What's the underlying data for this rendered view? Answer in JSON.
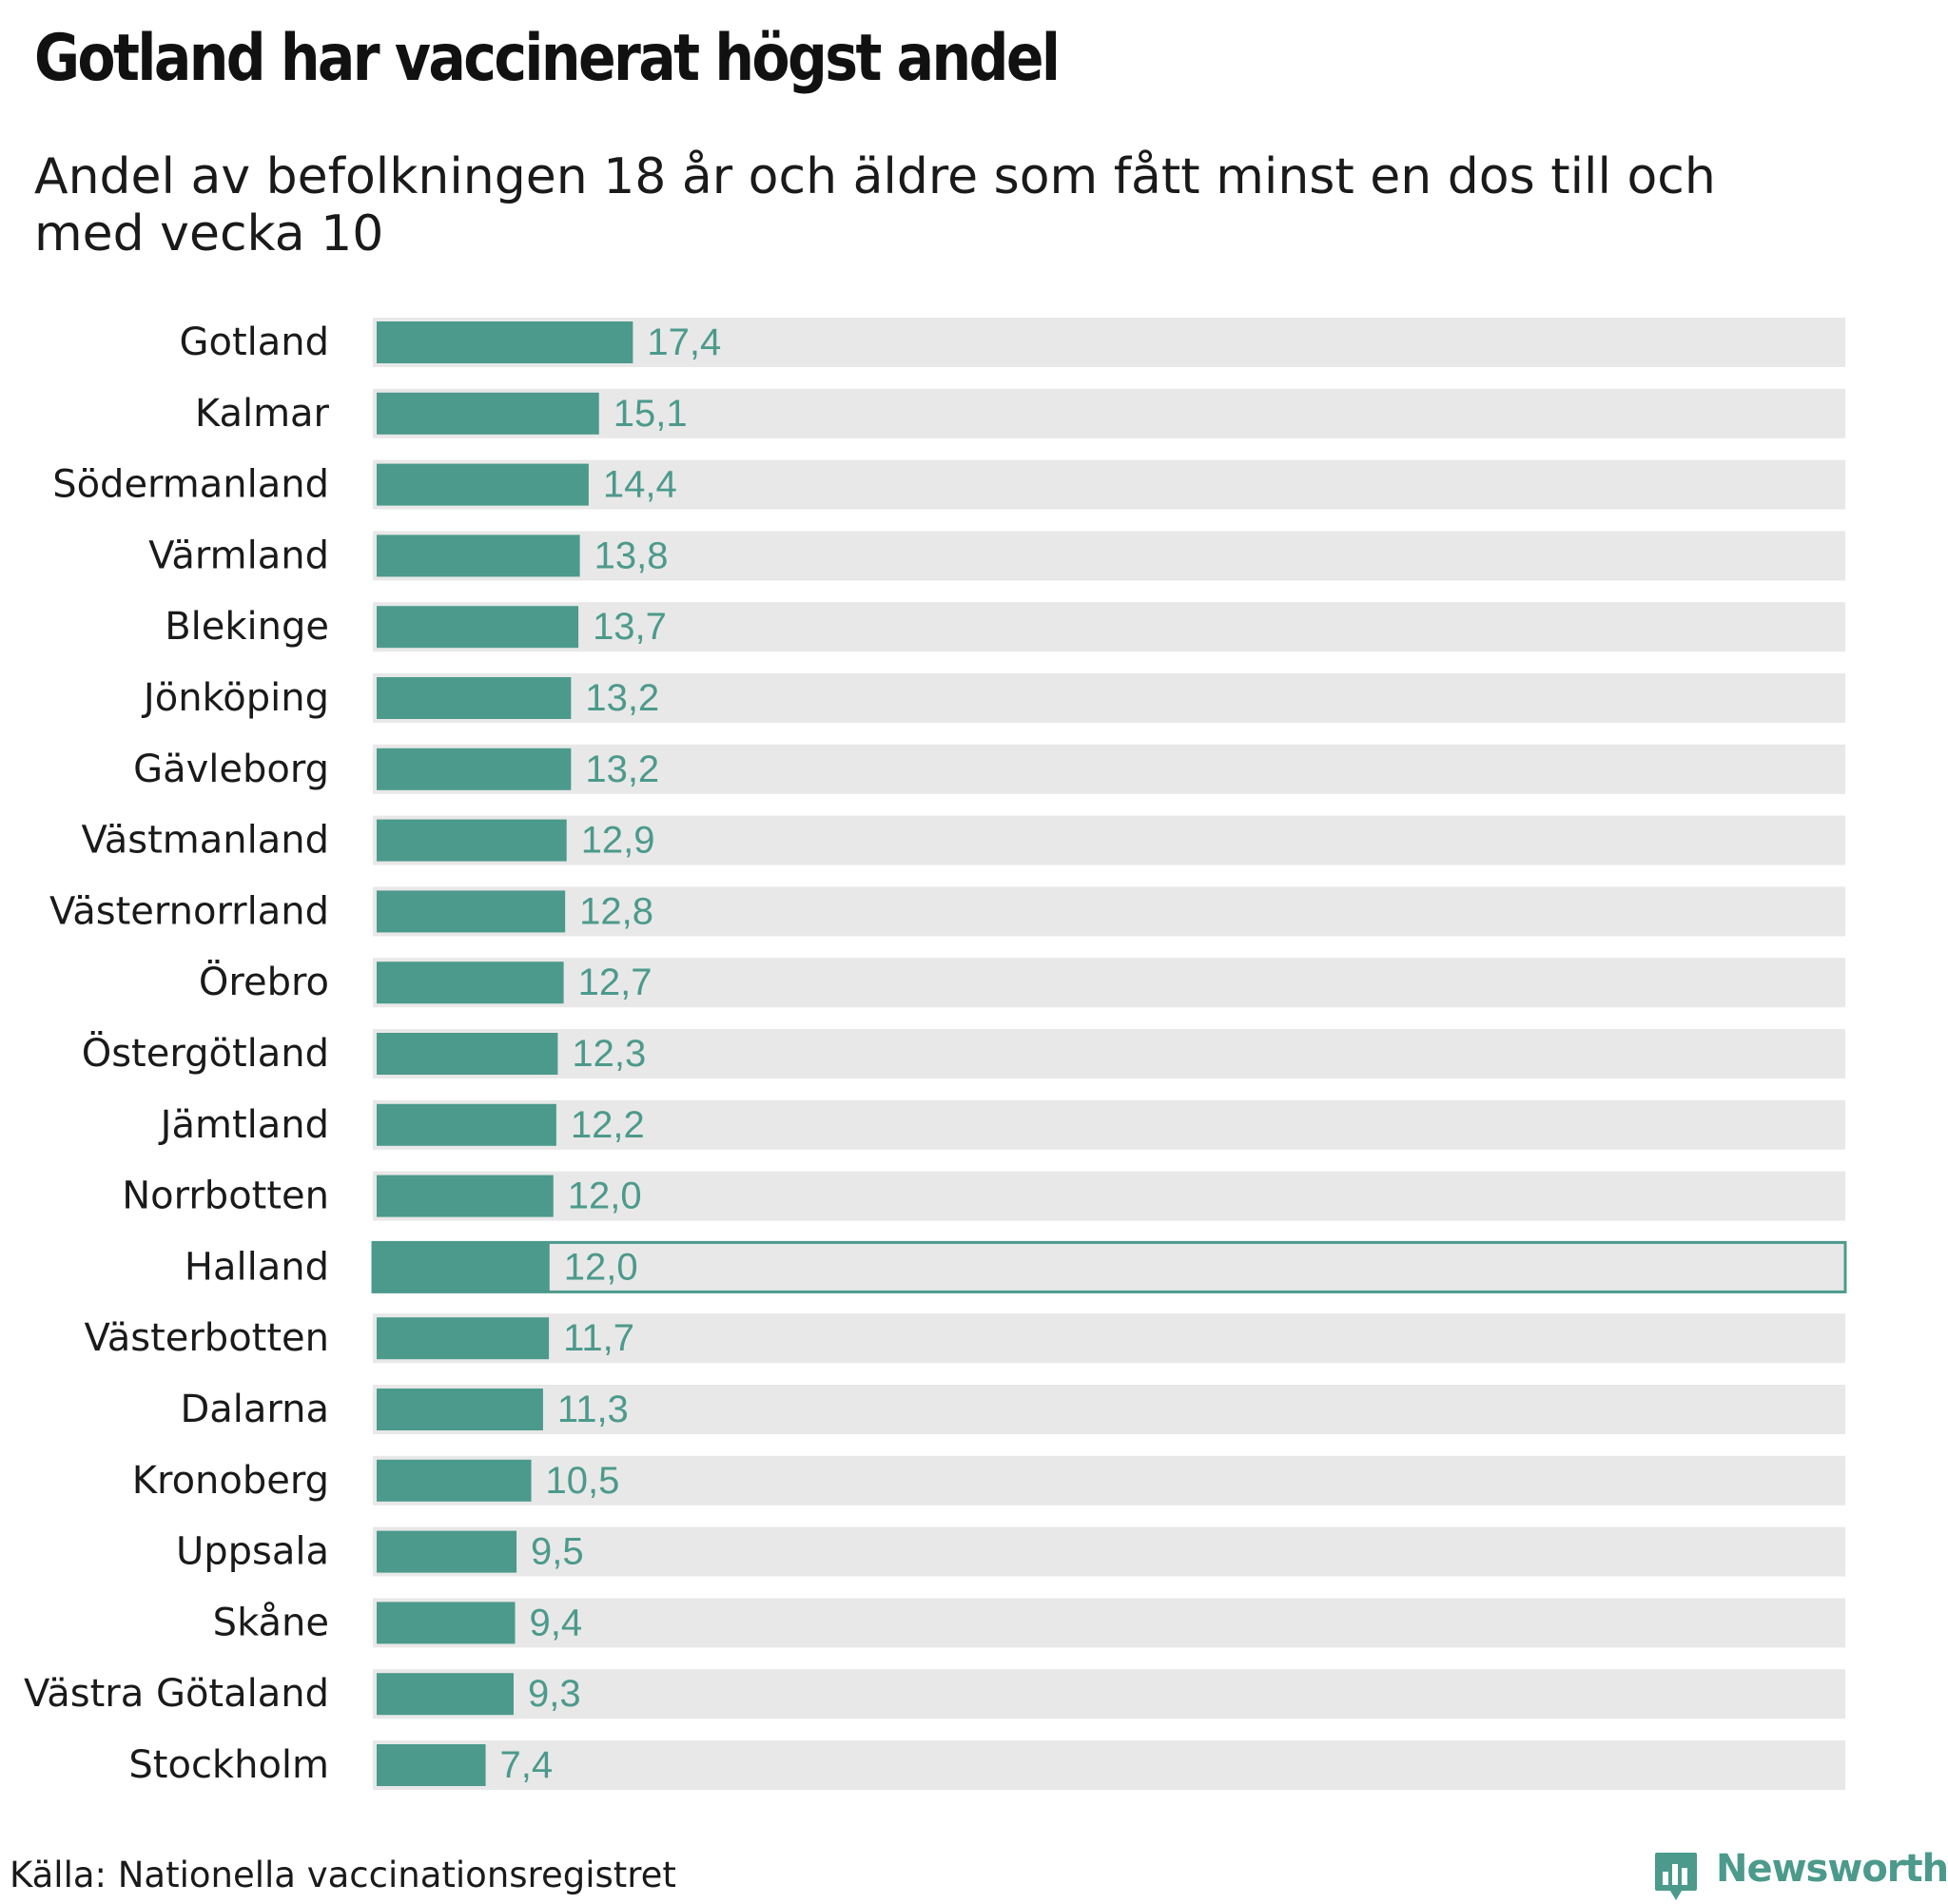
{
  "title": "Gotland har vaccinerat högst andel",
  "subtitle": "Andel av befolkningen 18 år och äldre som fått minst en dos till och med vecka 10",
  "source": "Källa: Nationella vaccinationsregistret",
  "brand": "Newsworthy",
  "colors": {
    "bar": "#4c9a8c",
    "track": "#e8e8e8",
    "text": "#1a1a1a",
    "value": "#4c9a8c"
  },
  "chart_data": {
    "type": "bar",
    "orientation": "horizontal",
    "categories": [
      "Gotland",
      "Kalmar",
      "Södermanland",
      "Värmland",
      "Blekinge",
      "Jönköping",
      "Gävleborg",
      "Västmanland",
      "Västernorrland",
      "Örebro",
      "Östergötland",
      "Jämtland",
      "Norrbotten",
      "Halland",
      "Västerbotten",
      "Dalarna",
      "Kronoberg",
      "Uppsala",
      "Skåne",
      "Västra Götaland",
      "Stockholm"
    ],
    "values": [
      17.4,
      15.1,
      14.4,
      13.8,
      13.7,
      13.2,
      13.2,
      12.9,
      12.8,
      12.7,
      12.3,
      12.2,
      12.0,
      12.0,
      11.7,
      11.3,
      10.5,
      9.5,
      9.4,
      9.3,
      7.4
    ],
    "value_labels": [
      "17,4",
      "15,1",
      "14,4",
      "13,8",
      "13,7",
      "13,2",
      "13,2",
      "12,9",
      "12,8",
      "12,7",
      "12,3",
      "12,2",
      "12,0",
      "12,0",
      "11,7",
      "11,3",
      "10,5",
      "9,5",
      "9,4",
      "9,3",
      "7,4"
    ],
    "highlighted": "Halland",
    "xlim": [
      0,
      100
    ],
    "grid": false,
    "legend": "none"
  }
}
